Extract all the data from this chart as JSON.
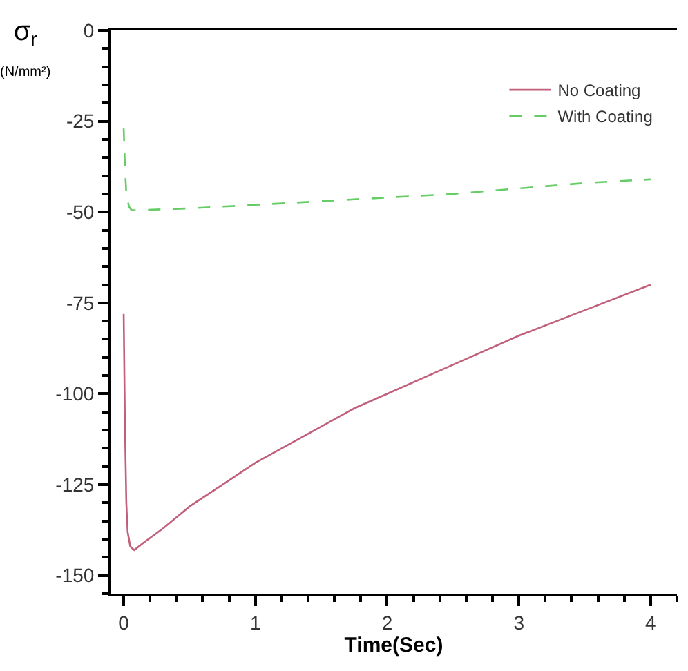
{
  "chart_data": {
    "type": "line",
    "xlabel": "Time(Sec)",
    "ylabel": "σ$_{r}$ (N/mm²)",
    "xlim": [
      -0.1,
      4.2
    ],
    "ylim": [
      -155,
      0
    ],
    "xticks": [
      0,
      1,
      2,
      3,
      4
    ],
    "yticks": [
      0,
      -25,
      -50,
      -75,
      -100,
      -125,
      -150
    ],
    "legend": "top right",
    "series": [
      {
        "name": "No Coating",
        "color": "#c0607a",
        "line_style": "solid",
        "x": [
          0,
          0.01,
          0.02,
          0.03,
          0.05,
          0.08,
          0.15,
          0.3,
          0.5,
          0.75,
          1,
          1.25,
          1.5,
          1.75,
          2,
          2.5,
          3,
          3.5,
          4
        ],
        "values": [
          -78,
          -110,
          -130,
          -138,
          -142,
          -143,
          -141,
          -137,
          -131,
          -125,
          -119,
          -114,
          -109,
          -104,
          -100,
          -92,
          -84,
          -77,
          -70
        ]
      },
      {
        "name": "With Coating",
        "color": "#66cc66",
        "line_style": "dashed",
        "x": [
          0,
          0.01,
          0.02,
          0.04,
          0.06,
          0.1,
          0.5,
          1,
          1.5,
          2,
          2.5,
          3,
          3.5,
          4
        ],
        "values": [
          -27,
          -38,
          -45,
          -48.5,
          -49.5,
          -49.5,
          -49,
          -48,
          -47,
          -46,
          -45,
          -43.5,
          -42,
          -41
        ]
      }
    ]
  }
}
